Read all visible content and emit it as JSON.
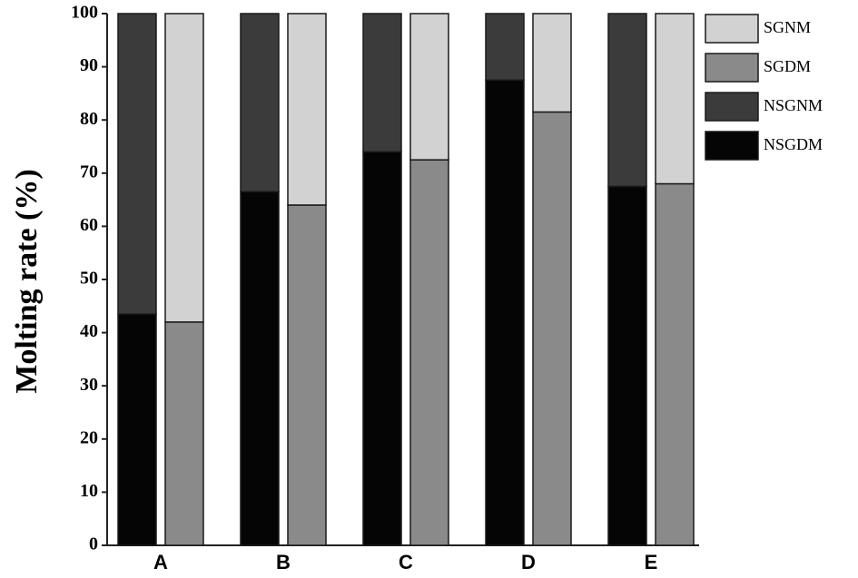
{
  "chart_data": {
    "type": "grouped-stacked-bar",
    "y_label": "Molting rate (%)",
    "categories": [
      "A",
      "B",
      "C",
      "D",
      "E"
    ],
    "stacks": [
      {
        "series": [
          {
            "name": "NSGDM",
            "color": "#050505",
            "values": [
              43.5,
              66.5,
              74,
              87.5,
              67.5
            ]
          },
          {
            "name": "NSGNM",
            "color": "#3b3b3b",
            "values": [
              56.5,
              33.5,
              26,
              12.5,
              32.5
            ]
          }
        ]
      },
      {
        "series": [
          {
            "name": "SGDM",
            "color": "#8a8a8a",
            "values": [
              42,
              64,
              72.5,
              81.5,
              68
            ]
          },
          {
            "name": "SGNM",
            "color": "#d2d2d2",
            "values": [
              58,
              36,
              27.5,
              18.5,
              32
            ]
          }
        ]
      }
    ],
    "ylim": [
      0,
      100
    ],
    "yticks": [
      0,
      10,
      20,
      30,
      40,
      50,
      60,
      70,
      80,
      90,
      100
    ]
  }
}
